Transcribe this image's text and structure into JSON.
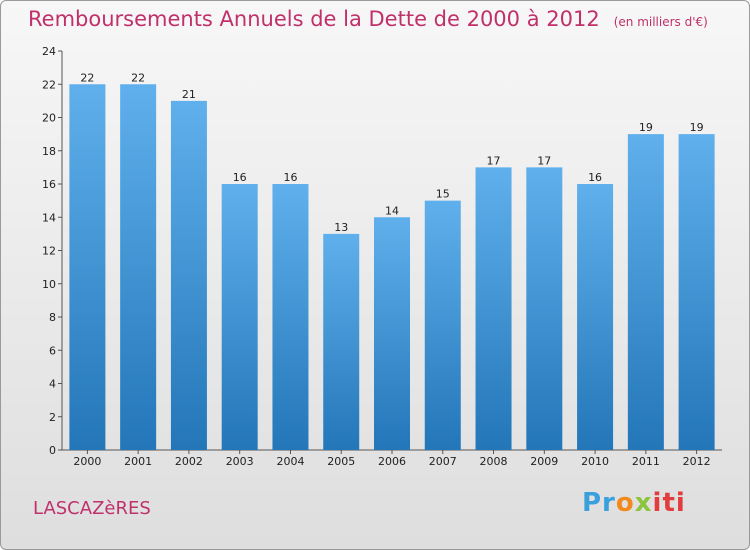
{
  "chart_data": {
    "type": "bar",
    "title": "Remboursements Annuels de la Dette de 2000 à 2012",
    "unit": "(en milliers d'€)",
    "categories": [
      "2000",
      "2001",
      "2002",
      "2003",
      "2004",
      "2005",
      "2006",
      "2007",
      "2008",
      "2009",
      "2010",
      "2011",
      "2012"
    ],
    "values": [
      22,
      22,
      21,
      16,
      16,
      13,
      14,
      15,
      17,
      17,
      16,
      19,
      19
    ],
    "ylim": [
      0,
      24
    ],
    "yticks": [
      0,
      2,
      4,
      6,
      8,
      10,
      12,
      14,
      16,
      18,
      20,
      22,
      24
    ],
    "grid": false,
    "bar_color": "#3a8fd4"
  },
  "footer": {
    "place_name": "LASCAZèRES",
    "logo": {
      "p1": "Pr",
      "p2": "o",
      "p3": "x",
      "p4": "iti"
    }
  }
}
